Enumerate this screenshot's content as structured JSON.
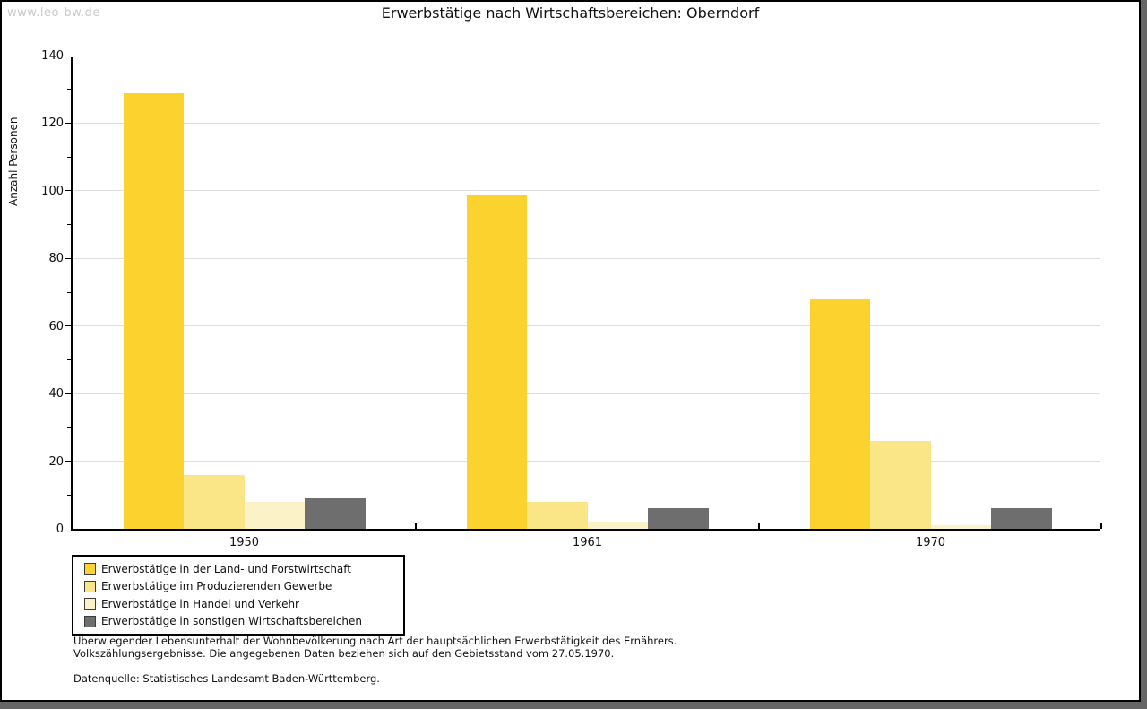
{
  "watermark": "www.leo-bw.de",
  "title": "Erwerbstätige nach Wirtschaftsbereichen: Oberndorf",
  "footer": {
    "line1": "Überwiegender Lebensunterhalt der Wohnbevölkerung nach Art der hauptsächlichen Erwerbstätigkeit des Ernährers.",
    "line2": "Volkszählungsergebnisse. Die angegebenen Daten beziehen sich auf den Gebietsstand vom 27.05.1970.",
    "source": "Datenquelle: Statistisches Landesamt Baden-Württemberg."
  },
  "chart_data": {
    "type": "bar",
    "title": "Erwerbstätige nach Wirtschaftsbereichen: Oberndorf",
    "ylabel": "Anzahl Personen",
    "xlabel": "",
    "categories": [
      "1950",
      "1961",
      "1970"
    ],
    "series": [
      {
        "name": "Erwerbstätige in der Land- und Forstwirtschaft",
        "color": "#FCD32E",
        "values": [
          129,
          99,
          68
        ]
      },
      {
        "name": "Erwerbstätige im Produzierenden Gewerbe",
        "color": "#FBE687",
        "values": [
          16,
          8,
          26
        ]
      },
      {
        "name": "Erwerbstätige in Handel und Verkehr",
        "color": "#FBF2C8",
        "values": [
          8,
          2,
          1
        ]
      },
      {
        "name": "Erwerbstätige in sonstigen Wirtschaftsbereichen",
        "color": "#6E6E6E",
        "values": [
          9,
          6,
          6
        ]
      }
    ],
    "ylim": [
      0,
      140
    ],
    "ytick_step": 20,
    "minor_tick_step": 10,
    "grid": true,
    "grid_color": "#DEDEDE",
    "legend_position": "bottom-left"
  },
  "colors": {
    "axis": "#000000",
    "grid": "#DEDEDE",
    "watermark": "#C9C9C9",
    "shadow": "#666666",
    "background": "#FFFFFF"
  }
}
